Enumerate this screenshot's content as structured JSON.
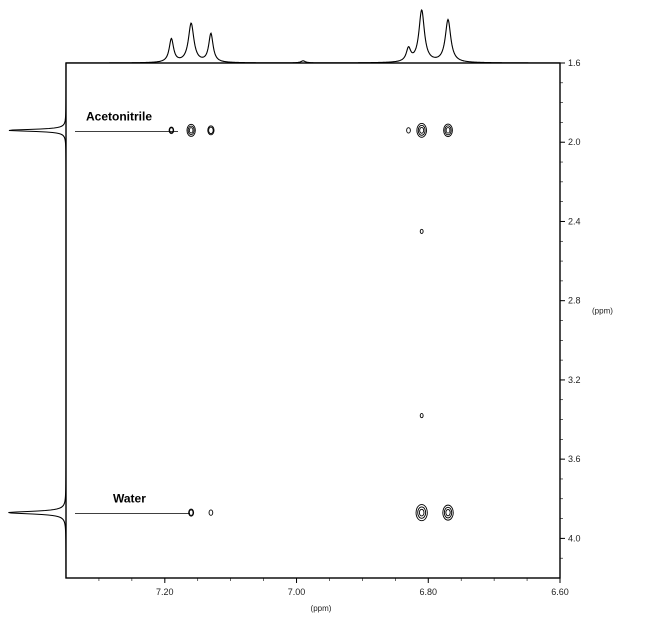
{
  "chart_data": {
    "type": "heatmap",
    "subtype": "2D NMR contour plot (NOESY/ROESY-style) with 1D projections",
    "title": "",
    "x_axis": {
      "label": "(ppm)",
      "range": [
        7.35,
        6.6
      ],
      "reversed": true,
      "ticks": [
        7.2,
        7.0,
        6.8,
        6.6
      ],
      "tick_labels": [
        "7.20",
        "7.00",
        "6.80",
        "6.60"
      ]
    },
    "y_axis": {
      "label": "(ppm)",
      "range": [
        1.6,
        4.2
      ],
      "reversed": true,
      "position": "right",
      "ticks": [
        1.6,
        2.0,
        2.4,
        2.8,
        3.2,
        3.6,
        4.0
      ],
      "tick_labels": [
        "1.6",
        "2.0",
        "2.4",
        "2.8",
        "3.2",
        "3.6",
        "4.0"
      ]
    },
    "annotations": [
      {
        "text": "Acetonitrile",
        "y": 1.94
      },
      {
        "text": "Water",
        "y": 3.87
      }
    ],
    "projection_top": [
      {
        "x": 7.19,
        "height": 0.45,
        "width": 0.004
      },
      {
        "x": 7.16,
        "height": 0.75,
        "width": 0.005
      },
      {
        "x": 7.13,
        "height": 0.55,
        "width": 0.004
      },
      {
        "x": 6.99,
        "height": 0.04,
        "width": 0.004
      },
      {
        "x": 6.83,
        "height": 0.25,
        "width": 0.004
      },
      {
        "x": 6.81,
        "height": 1.0,
        "width": 0.005
      },
      {
        "x": 6.77,
        "height": 0.82,
        "width": 0.005
      }
    ],
    "projection_left": [
      {
        "y": 1.94,
        "height": 1.0,
        "width": 0.006
      },
      {
        "y": 3.87,
        "height": 1.0,
        "width": 0.008
      }
    ],
    "cross_peaks": [
      {
        "x": 7.19,
        "y": 1.94,
        "size": 0.4
      },
      {
        "x": 7.16,
        "y": 1.94,
        "size": 0.85
      },
      {
        "x": 7.13,
        "y": 1.94,
        "size": 0.6
      },
      {
        "x": 6.83,
        "y": 1.94,
        "size": 0.3
      },
      {
        "x": 6.81,
        "y": 1.94,
        "size": 1.0
      },
      {
        "x": 6.77,
        "y": 1.94,
        "size": 0.9
      },
      {
        "x": 7.16,
        "y": 3.87,
        "size": 0.45
      },
      {
        "x": 7.13,
        "y": 3.87,
        "size": 0.3
      },
      {
        "x": 6.81,
        "y": 3.87,
        "size": 1.2
      },
      {
        "x": 6.77,
        "y": 3.87,
        "size": 1.1
      },
      {
        "x": 6.81,
        "y": 2.45,
        "size": 0.2
      },
      {
        "x": 6.81,
        "y": 3.38,
        "size": 0.2
      }
    ],
    "grid": false,
    "legend": "none"
  }
}
